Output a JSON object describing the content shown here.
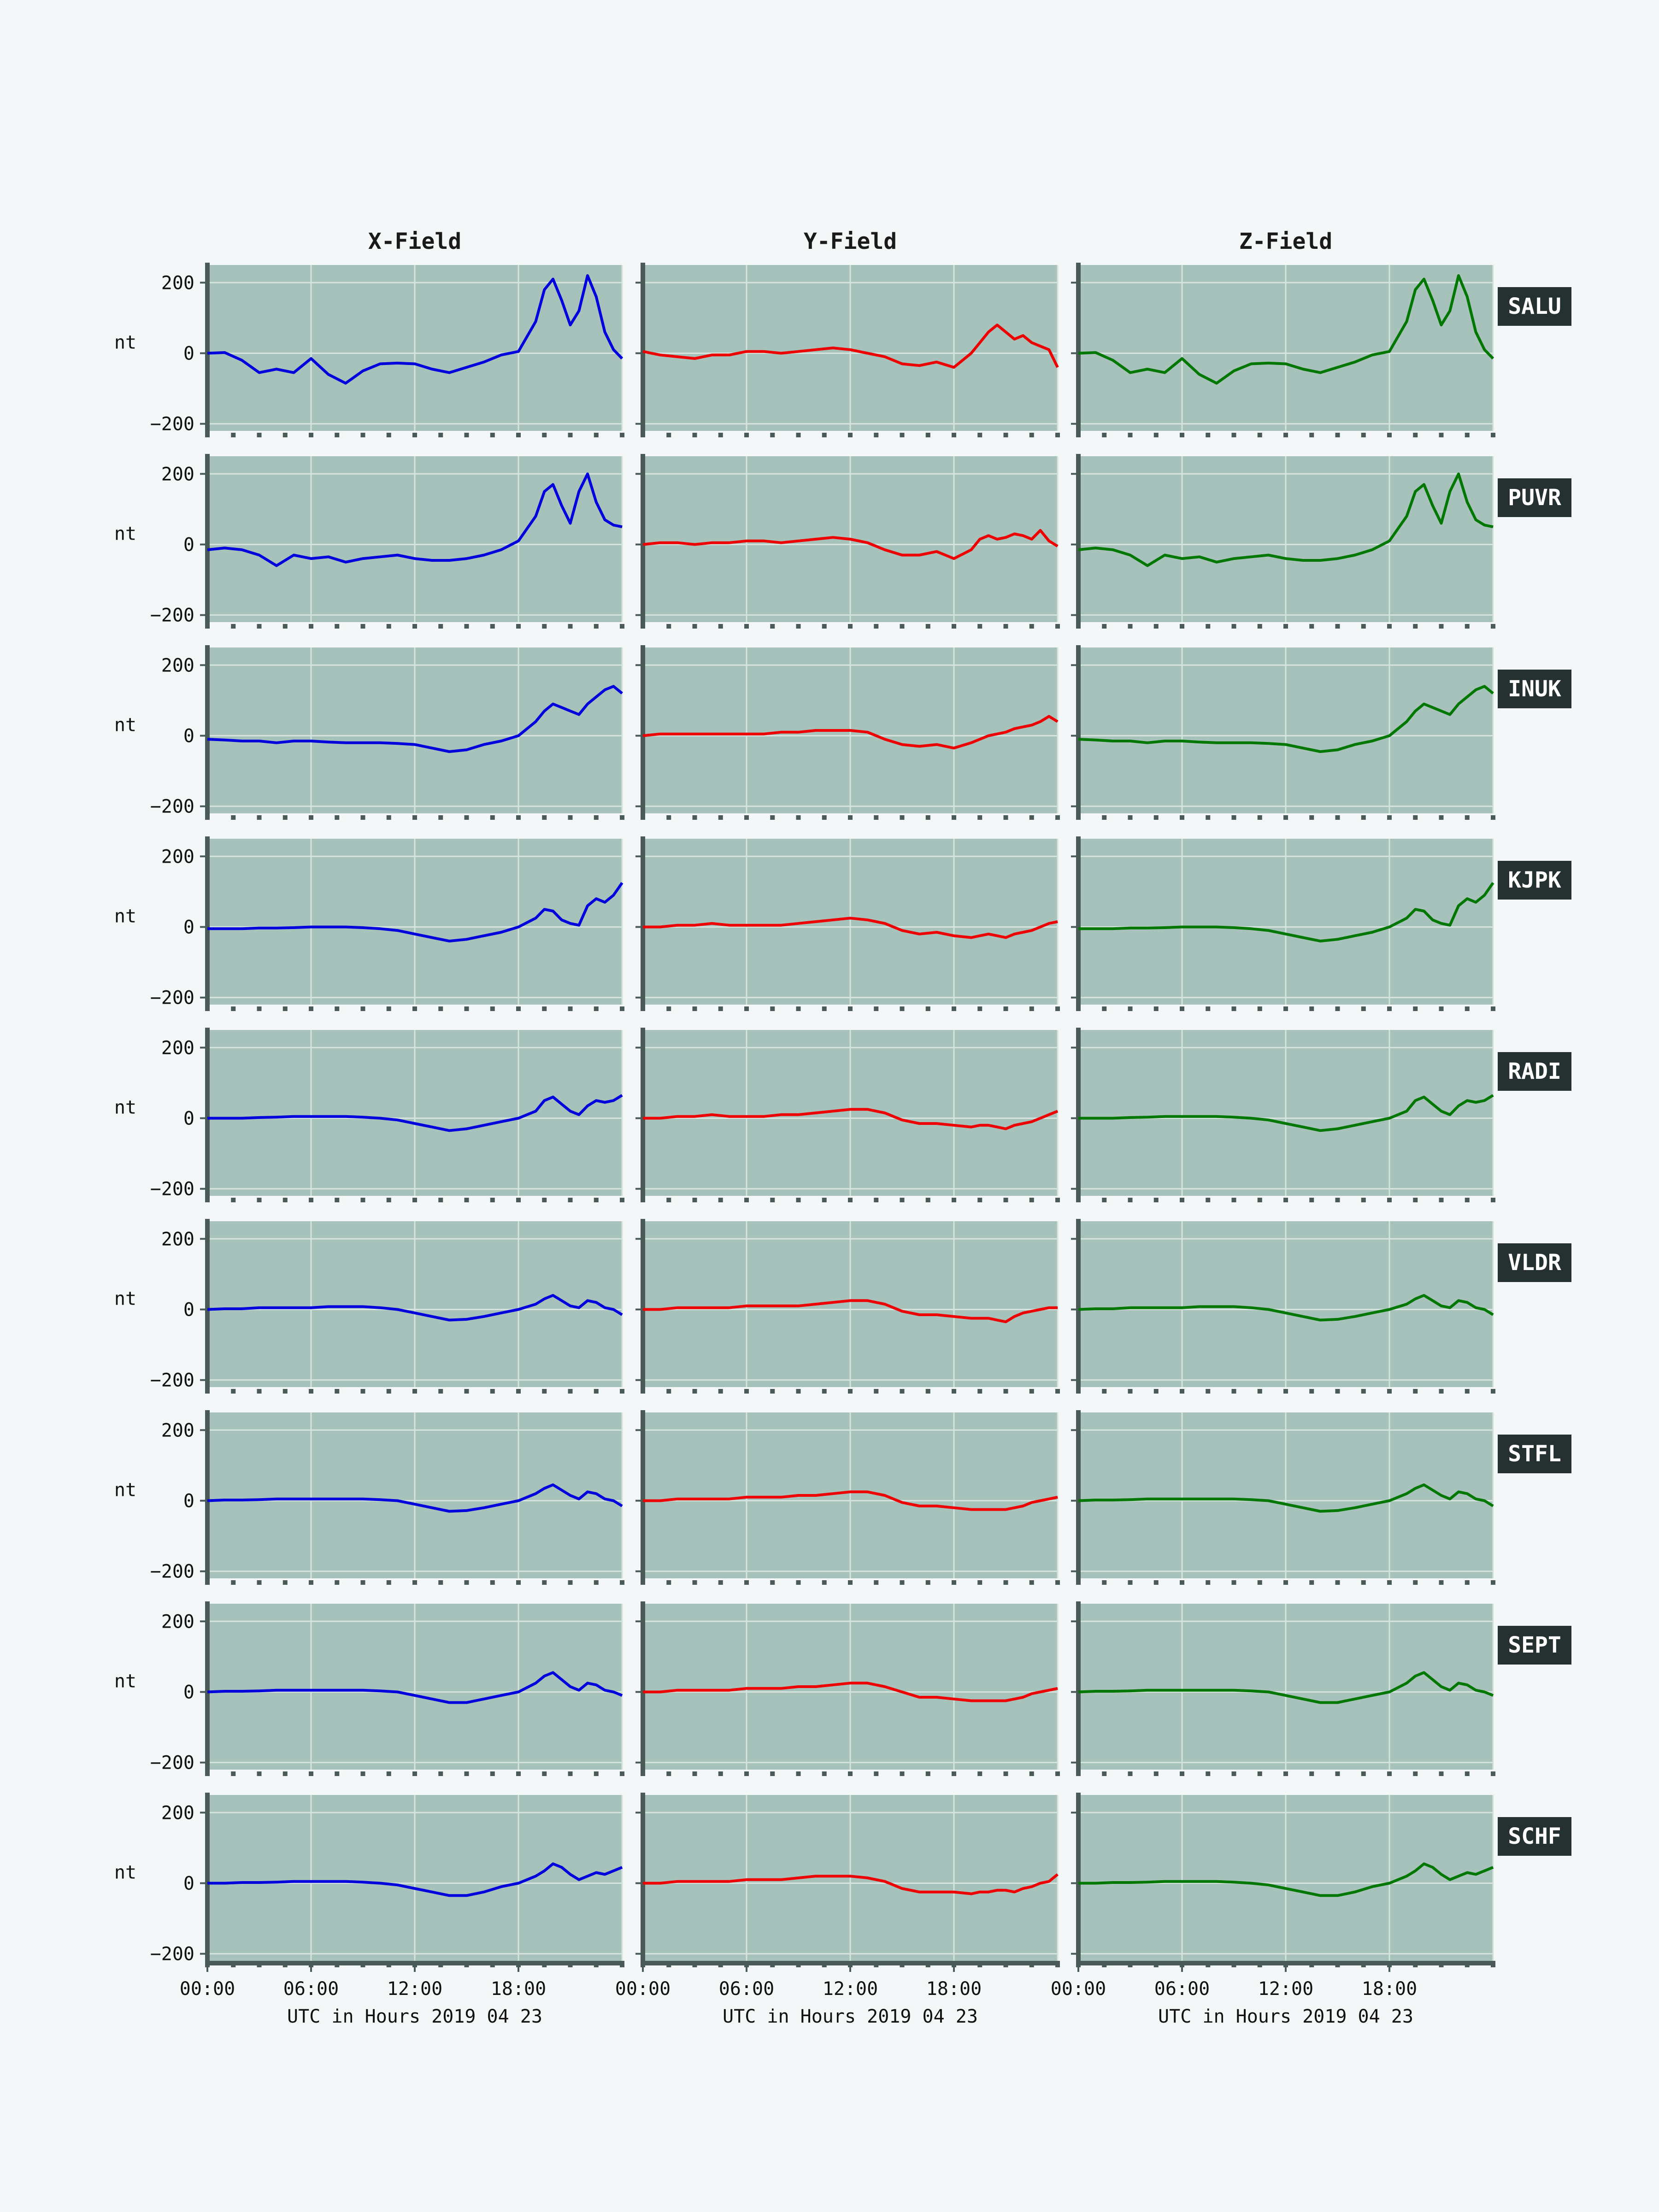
{
  "colors": {
    "page_background": "#f4f7f7",
    "panel_background": "#a7c1bb",
    "grid": "#d6e3df",
    "axis_spine": "#4a5a56",
    "label_box": "#253130",
    "x_series": "#0000dd",
    "y_series": "#ee0000",
    "z_series": "#007700"
  },
  "chart_data": {
    "type": "line",
    "title": "",
    "columns": [
      "X-Field",
      "Y-Field",
      "Z-Field"
    ],
    "stations": [
      "SALU",
      "PUVR",
      "INUK",
      "KJPK",
      "RADI",
      "VLDR",
      "STFL",
      "SEPT",
      "SCHF"
    ],
    "ylabel": "nt",
    "xlabel": "UTC in Hours  2019 04 23",
    "xlim_hours": [
      0,
      24
    ],
    "ylim": [
      -220,
      250
    ],
    "x_ticks": [
      0,
      6,
      12,
      18
    ],
    "x_tick_labels": [
      "00:00",
      "06:00",
      "12:00",
      "18:00"
    ],
    "y_ticks": [
      -200,
      0,
      200
    ],
    "y_tick_labels": [
      "−200",
      "0",
      "200"
    ],
    "grid": true,
    "x_hours": [
      0,
      1,
      2,
      3,
      4,
      5,
      6,
      7,
      8,
      9,
      10,
      11,
      12,
      13,
      14,
      15,
      16,
      17,
      18,
      19,
      19.5,
      20,
      20.5,
      21,
      21.5,
      22,
      22.5,
      23,
      23.5,
      24
    ],
    "panels": [
      {
        "station": "SALU",
        "X": [
          0,
          2,
          -20,
          -55,
          -45,
          -55,
          -15,
          -60,
          -85,
          -50,
          -30,
          -28,
          -30,
          -45,
          -55,
          -40,
          -25,
          -5,
          5,
          90,
          180,
          210,
          150,
          80,
          120,
          220,
          160,
          60,
          10,
          -15
        ],
        "Y": [
          5,
          -5,
          -10,
          -15,
          -5,
          -5,
          5,
          5,
          0,
          5,
          10,
          15,
          10,
          0,
          -10,
          -30,
          -35,
          -25,
          -40,
          0,
          30,
          60,
          80,
          60,
          40,
          50,
          30,
          20,
          10,
          -40
        ],
        "Z": [
          0,
          2,
          -20,
          -55,
          -45,
          -55,
          -15,
          -60,
          -85,
          -50,
          -30,
          -28,
          -30,
          -45,
          -55,
          -40,
          -25,
          -5,
          5,
          90,
          180,
          210,
          150,
          80,
          120,
          220,
          160,
          60,
          10,
          -15
        ]
      },
      {
        "station": "PUVR",
        "X": [
          -15,
          -10,
          -15,
          -30,
          -60,
          -30,
          -40,
          -35,
          -50,
          -40,
          -35,
          -30,
          -40,
          -45,
          -45,
          -40,
          -30,
          -15,
          10,
          80,
          150,
          170,
          110,
          60,
          150,
          200,
          120,
          70,
          55,
          50
        ],
        "Y": [
          0,
          5,
          5,
          0,
          5,
          5,
          10,
          10,
          5,
          10,
          15,
          20,
          15,
          5,
          -15,
          -30,
          -30,
          -20,
          -40,
          -15,
          15,
          25,
          15,
          20,
          30,
          25,
          15,
          40,
          10,
          -5
        ],
        "Z": [
          -15,
          -10,
          -15,
          -30,
          -60,
          -30,
          -40,
          -35,
          -50,
          -40,
          -35,
          -30,
          -40,
          -45,
          -45,
          -40,
          -30,
          -15,
          10,
          80,
          150,
          170,
          110,
          60,
          150,
          200,
          120,
          70,
          55,
          50
        ]
      },
      {
        "station": "INUK",
        "X": [
          -10,
          -12,
          -15,
          -15,
          -20,
          -15,
          -15,
          -18,
          -20,
          -20,
          -20,
          -22,
          -25,
          -35,
          -45,
          -40,
          -25,
          -15,
          0,
          40,
          70,
          90,
          80,
          70,
          60,
          90,
          110,
          130,
          140,
          120
        ],
        "Y": [
          0,
          5,
          5,
          5,
          5,
          5,
          5,
          5,
          10,
          10,
          15,
          15,
          15,
          10,
          -10,
          -25,
          -30,
          -25,
          -35,
          -20,
          -10,
          0,
          5,
          10,
          20,
          25,
          30,
          40,
          55,
          40
        ],
        "Z": [
          -10,
          -12,
          -15,
          -15,
          -20,
          -15,
          -15,
          -18,
          -20,
          -20,
          -20,
          -22,
          -25,
          -35,
          -45,
          -40,
          -25,
          -15,
          0,
          40,
          70,
          90,
          80,
          70,
          60,
          90,
          110,
          130,
          140,
          120
        ]
      },
      {
        "station": "KJPK",
        "X": [
          -5,
          -5,
          -5,
          -3,
          -3,
          -2,
          0,
          0,
          0,
          -2,
          -5,
          -10,
          -20,
          -30,
          -40,
          -35,
          -25,
          -15,
          0,
          25,
          50,
          45,
          20,
          10,
          5,
          60,
          80,
          70,
          90,
          125
        ],
        "Y": [
          0,
          0,
          5,
          5,
          10,
          5,
          5,
          5,
          5,
          10,
          15,
          20,
          25,
          20,
          10,
          -10,
          -20,
          -15,
          -25,
          -30,
          -25,
          -20,
          -25,
          -30,
          -20,
          -15,
          -10,
          0,
          10,
          15
        ],
        "Z": [
          -5,
          -5,
          -5,
          -3,
          -3,
          -2,
          0,
          0,
          0,
          -2,
          -5,
          -10,
          -20,
          -30,
          -40,
          -35,
          -25,
          -15,
          0,
          25,
          50,
          45,
          20,
          10,
          5,
          60,
          80,
          70,
          90,
          125
        ]
      },
      {
        "station": "RADI",
        "X": [
          0,
          0,
          0,
          2,
          3,
          5,
          5,
          5,
          5,
          3,
          0,
          -5,
          -15,
          -25,
          -35,
          -30,
          -20,
          -10,
          0,
          20,
          50,
          60,
          40,
          20,
          10,
          35,
          50,
          45,
          50,
          65
        ],
        "Y": [
          0,
          0,
          5,
          5,
          10,
          5,
          5,
          5,
          10,
          10,
          15,
          20,
          25,
          25,
          15,
          -5,
          -15,
          -15,
          -20,
          -25,
          -20,
          -20,
          -25,
          -30,
          -20,
          -15,
          -10,
          0,
          10,
          20
        ],
        "Z": [
          0,
          0,
          0,
          2,
          3,
          5,
          5,
          5,
          5,
          3,
          0,
          -5,
          -15,
          -25,
          -35,
          -30,
          -20,
          -10,
          0,
          20,
          50,
          60,
          40,
          20,
          10,
          35,
          50,
          45,
          50,
          65
        ]
      },
      {
        "station": "VLDR",
        "X": [
          0,
          2,
          2,
          5,
          5,
          5,
          5,
          8,
          8,
          8,
          5,
          0,
          -10,
          -20,
          -30,
          -28,
          -20,
          -10,
          0,
          15,
          30,
          40,
          25,
          10,
          5,
          25,
          20,
          5,
          0,
          -15
        ],
        "Y": [
          0,
          0,
          5,
          5,
          5,
          5,
          10,
          10,
          10,
          10,
          15,
          20,
          25,
          25,
          15,
          -5,
          -15,
          -15,
          -20,
          -25,
          -25,
          -25,
          -30,
          -35,
          -20,
          -10,
          -5,
          0,
          5,
          5
        ],
        "Z": [
          0,
          2,
          2,
          5,
          5,
          5,
          5,
          8,
          8,
          8,
          5,
          0,
          -10,
          -20,
          -30,
          -28,
          -20,
          -10,
          0,
          15,
          30,
          40,
          25,
          10,
          5,
          25,
          20,
          5,
          0,
          -15
        ]
      },
      {
        "station": "STFL",
        "X": [
          0,
          2,
          2,
          3,
          5,
          5,
          5,
          5,
          5,
          5,
          3,
          0,
          -10,
          -20,
          -30,
          -28,
          -20,
          -10,
          0,
          20,
          35,
          45,
          30,
          15,
          5,
          25,
          20,
          5,
          0,
          -15
        ],
        "Y": [
          0,
          0,
          5,
          5,
          5,
          5,
          10,
          10,
          10,
          15,
          15,
          20,
          25,
          25,
          15,
          -5,
          -15,
          -15,
          -20,
          -25,
          -25,
          -25,
          -25,
          -25,
          -20,
          -15,
          -5,
          0,
          5,
          10
        ],
        "Z": [
          0,
          2,
          2,
          3,
          5,
          5,
          5,
          5,
          5,
          5,
          3,
          0,
          -10,
          -20,
          -30,
          -28,
          -20,
          -10,
          0,
          20,
          35,
          45,
          30,
          15,
          5,
          25,
          20,
          5,
          0,
          -15
        ]
      },
      {
        "station": "SEPT",
        "X": [
          0,
          2,
          2,
          3,
          5,
          5,
          5,
          5,
          5,
          5,
          3,
          0,
          -10,
          -20,
          -30,
          -30,
          -20,
          -10,
          0,
          25,
          45,
          55,
          35,
          15,
          5,
          25,
          20,
          5,
          0,
          -10
        ],
        "Y": [
          0,
          0,
          5,
          5,
          5,
          5,
          10,
          10,
          10,
          15,
          15,
          20,
          25,
          25,
          15,
          0,
          -15,
          -15,
          -20,
          -25,
          -25,
          -25,
          -25,
          -25,
          -20,
          -15,
          -5,
          0,
          5,
          10
        ],
        "Z": [
          0,
          2,
          2,
          3,
          5,
          5,
          5,
          5,
          5,
          5,
          3,
          0,
          -10,
          -20,
          -30,
          -30,
          -20,
          -10,
          0,
          25,
          45,
          55,
          35,
          15,
          5,
          25,
          20,
          5,
          0,
          -10
        ]
      },
      {
        "station": "SCHF",
        "X": [
          0,
          0,
          2,
          2,
          3,
          5,
          5,
          5,
          5,
          3,
          0,
          -5,
          -15,
          -25,
          -35,
          -35,
          -25,
          -10,
          0,
          20,
          35,
          55,
          45,
          25,
          10,
          20,
          30,
          25,
          35,
          45
        ],
        "Y": [
          0,
          0,
          5,
          5,
          5,
          5,
          10,
          10,
          10,
          15,
          20,
          20,
          20,
          15,
          5,
          -15,
          -25,
          -25,
          -25,
          -30,
          -25,
          -25,
          -20,
          -20,
          -25,
          -15,
          -10,
          0,
          5,
          25
        ],
        "Z": [
          0,
          0,
          2,
          2,
          3,
          5,
          5,
          5,
          5,
          3,
          0,
          -5,
          -15,
          -25,
          -35,
          -35,
          -25,
          -10,
          0,
          20,
          35,
          55,
          45,
          25,
          10,
          20,
          30,
          25,
          35,
          45
        ]
      }
    ]
  }
}
